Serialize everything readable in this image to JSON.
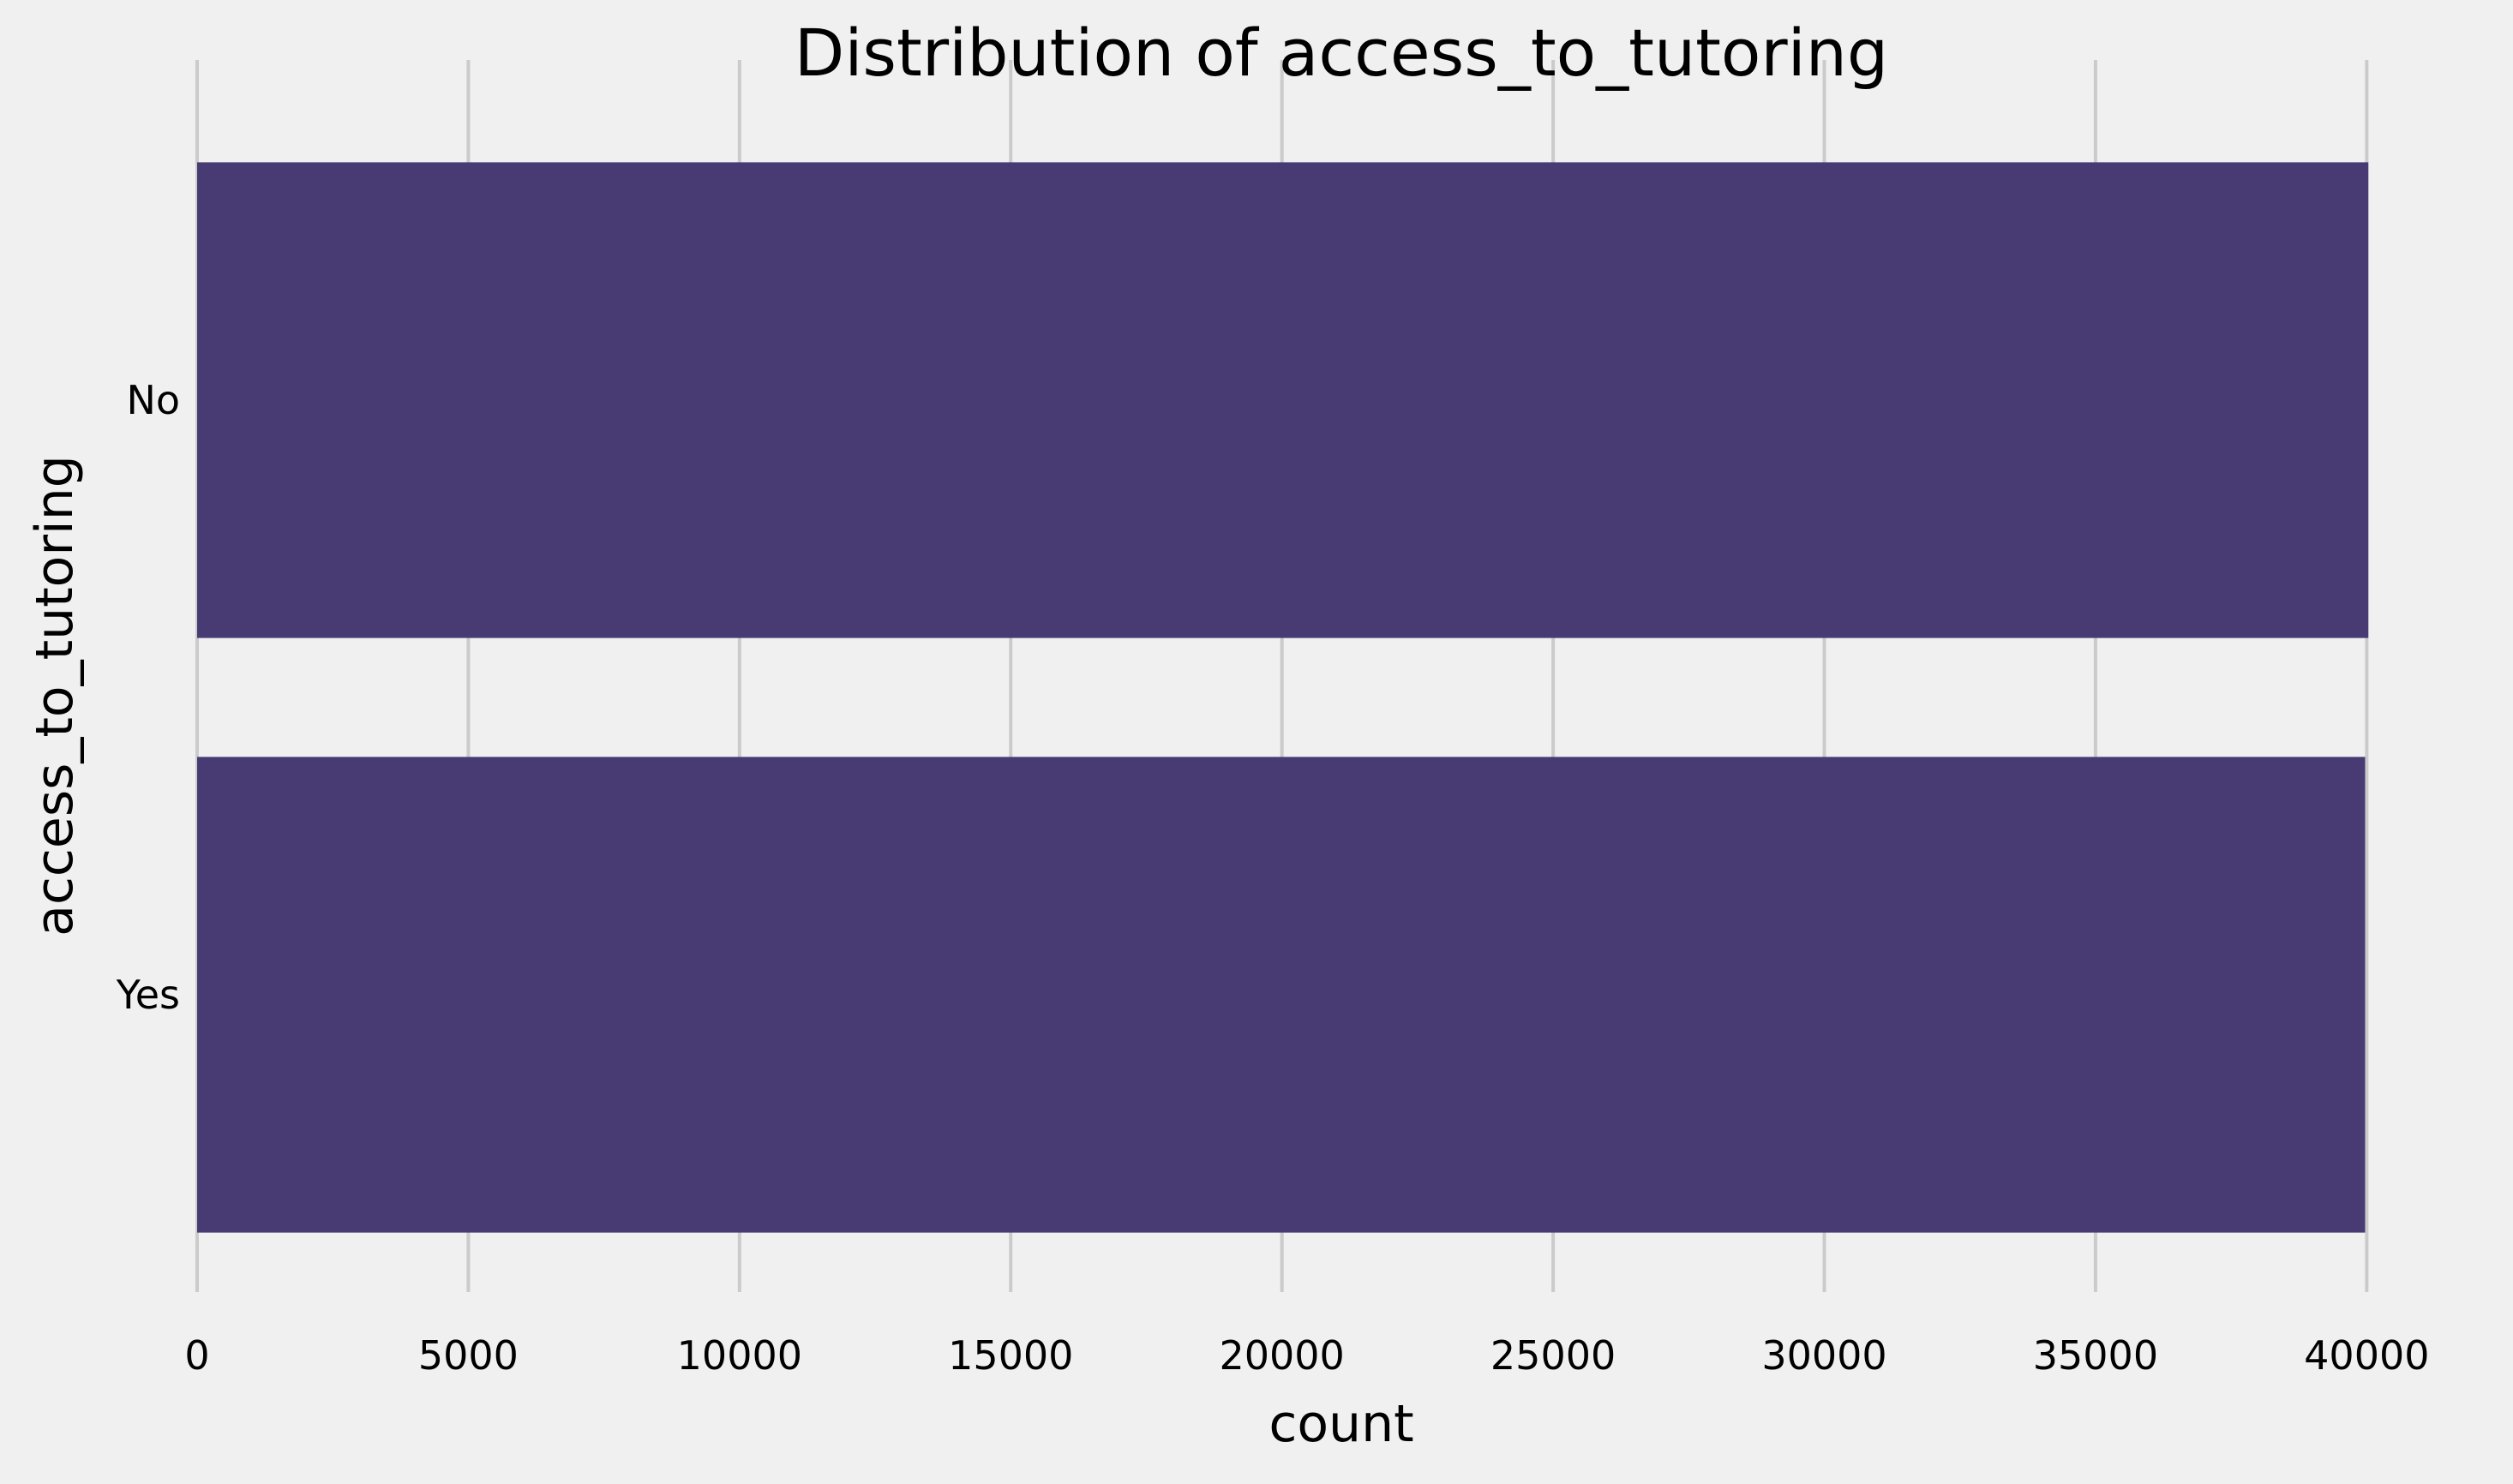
{
  "chart_data": {
    "type": "bar",
    "orientation": "horizontal",
    "title": "Distribution of access_to_tutoring",
    "xlabel": "count",
    "ylabel": "access_to_tutoring",
    "categories": [
      "No",
      "Yes"
    ],
    "values": [
      40030,
      39970
    ],
    "xlim": [
      0,
      40200
    ],
    "xticks": [
      0,
      5000,
      10000,
      15000,
      20000,
      25000,
      30000,
      35000,
      40000
    ],
    "xtick_labels": [
      "0",
      "5000",
      "10000",
      "15000",
      "20000",
      "25000",
      "30000",
      "35000",
      "40000"
    ],
    "grid": "vertical",
    "legend": "none",
    "colors": {
      "bar": "#483b74",
      "grid": "#cbcbcb",
      "background": "#f0f0f0"
    }
  }
}
